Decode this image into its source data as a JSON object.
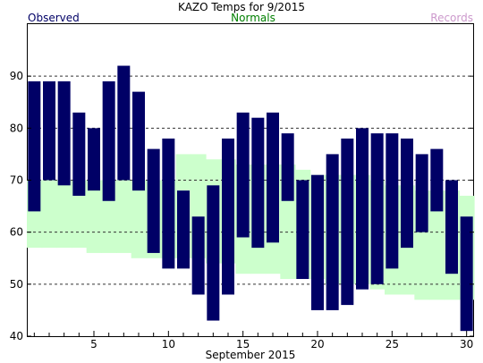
{
  "chart_data": {
    "type": "bar",
    "title": "KAZO Temps for 9/2015",
    "xlabel": "September 2015",
    "ylabel": "",
    "legend": {
      "observed": "Observed",
      "normals": "Normals",
      "records": "Records"
    },
    "colors": {
      "observed": "#000066",
      "normals": "#ccffcc",
      "records": "#cc99cc",
      "observed_label": "#000066",
      "normals_label": "#008000",
      "records_label": "#cc99cc"
    },
    "xlim": [
      0.5,
      30.5
    ],
    "ylim": [
      40,
      100
    ],
    "x_ticks": [
      5,
      10,
      15,
      20,
      25,
      30
    ],
    "y_ticks": [
      40,
      50,
      60,
      70,
      80,
      90
    ],
    "grid_lines": [
      50,
      60,
      70,
      80,
      90
    ],
    "days": [
      1,
      2,
      3,
      4,
      5,
      6,
      7,
      8,
      9,
      10,
      11,
      12,
      13,
      14,
      15,
      16,
      17,
      18,
      19,
      20,
      21,
      22,
      23,
      24,
      25,
      26,
      27,
      28,
      29,
      30
    ],
    "observed_high": [
      89,
      89,
      89,
      83,
      80,
      89,
      92,
      87,
      76,
      78,
      68,
      63,
      69,
      78,
      83,
      82,
      83,
      79,
      70,
      71,
      75,
      78,
      80,
      79,
      79,
      78,
      75,
      76,
      70,
      63
    ],
    "observed_low": [
      64,
      70,
      69,
      67,
      68,
      66,
      70,
      68,
      56,
      53,
      53,
      48,
      43,
      48,
      59,
      57,
      58,
      66,
      51,
      45,
      45,
      46,
      49,
      50,
      53,
      57,
      60,
      64,
      52,
      41
    ],
    "normal_high": [
      70,
      70,
      70,
      70,
      70,
      70,
      70,
      70,
      70,
      70,
      75,
      75,
      74,
      74,
      73,
      73,
      73,
      73,
      72,
      71,
      71,
      71,
      71,
      70,
      69,
      69,
      68,
      68,
      68,
      67
    ],
    "normal_low": [
      57,
      57,
      57,
      57,
      56,
      56,
      56,
      55,
      55,
      55,
      55,
      55,
      54,
      54,
      52,
      52,
      52,
      51,
      51,
      51,
      50,
      50,
      50,
      49,
      48,
      48,
      47,
      47,
      47,
      47
    ]
  }
}
